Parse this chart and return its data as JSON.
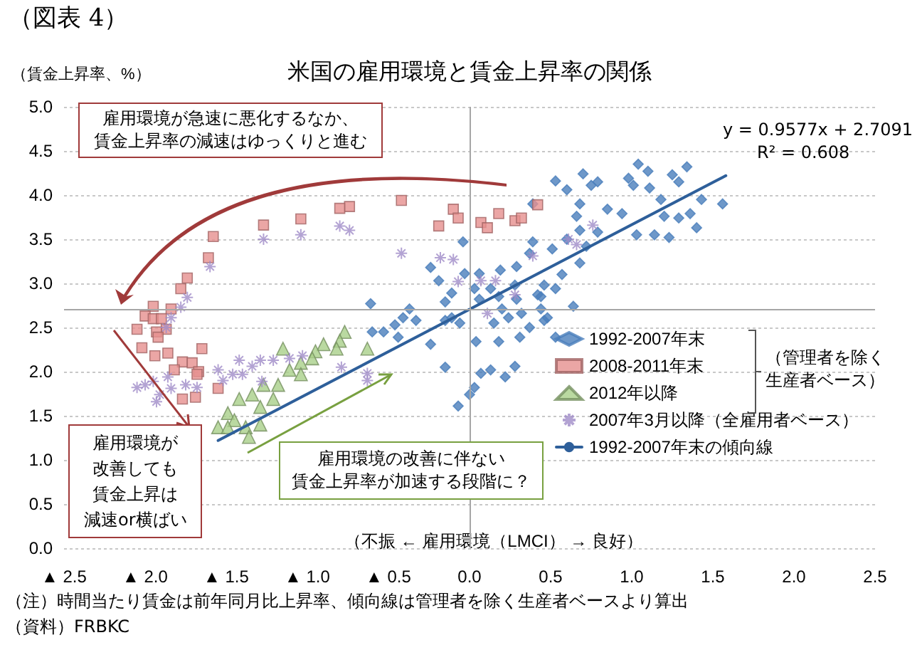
{
  "chart_data": {
    "type": "scatter",
    "title": "米国の雇用環境と賃金上昇率の関係",
    "xlabel": "（不振 ← 雇用環境（LMCI） → 良好）",
    "ylabel": "（賃金上昇率、%）",
    "xlim": [
      -2.5,
      2.5
    ],
    "xticks": [
      {
        "value": -2.5,
        "label": "▲ 2.5"
      },
      {
        "value": -2,
        "label": "▲ 2.0"
      },
      {
        "value": -1.5,
        "label": "▲ 1.5"
      },
      {
        "value": -1,
        "label": "▲ 1.0"
      },
      {
        "value": -0.5,
        "label": "▲ 0.5"
      },
      {
        "value": 0,
        "label": "0.0"
      },
      {
        "value": 0.5,
        "label": "0.5"
      },
      {
        "value": 1,
        "label": "1.0"
      },
      {
        "value": 1.5,
        "label": "1.5"
      },
      {
        "value": 2,
        "label": "2.0"
      },
      {
        "value": 2.5,
        "label": "2.5"
      }
    ],
    "ylim": [
      0,
      5
    ],
    "yticks": [
      {
        "value": 0,
        "label": "0.0"
      },
      {
        "value": 0.5,
        "label": "0.5"
      },
      {
        "value": 1,
        "label": "1.0"
      },
      {
        "value": 1.5,
        "label": "1.5"
      },
      {
        "value": 2,
        "label": "2.0"
      },
      {
        "value": 2.5,
        "label": "2.5"
      },
      {
        "value": 3,
        "label": "3.0"
      },
      {
        "value": 3.5,
        "label": "3.5"
      },
      {
        "value": 4,
        "label": "4.0"
      },
      {
        "value": 4.5,
        "label": "4.5"
      },
      {
        "value": 5,
        "label": "5.0"
      }
    ],
    "grid": "y",
    "legend": "bottom right",
    "series": [
      {
        "name": "1992-2007年末",
        "color": "#4a7ebb",
        "marker": "diamond",
        "x": [
          -0.04,
          -0.24,
          -0.19,
          -0.11,
          -0.15,
          -0.03,
          -0.61,
          -0.37,
          -0.41,
          -0.33,
          -0.46,
          -0.53,
          -0.6,
          -0.15,
          -0.06,
          -0.44,
          -0.24,
          -0.15,
          0,
          -0.07,
          0.03,
          0.04,
          -0.11,
          0.53,
          0.6,
          0.7,
          0.75,
          0.79,
          0.98,
          1.04,
          1.1,
          1.01,
          1.11,
          1.25,
          1.34,
          1.29,
          1.18,
          1.43,
          1.56,
          1.36,
          1.4,
          1.29,
          1.2,
          1.03,
          0.94,
          1.14,
          1.23,
          0.85,
          0.68,
          0.66,
          0.68,
          0.79,
          0.72,
          0.6,
          0.39,
          0.39,
          0.51,
          0.57,
          0.37,
          0.68,
          0.64,
          0.46,
          0.53,
          0.42,
          0.29,
          0.19,
          0.06,
          0.13,
          0.28,
          0.2,
          0.06,
          0.32,
          0.44,
          0.48,
          0.37,
          0.24,
          0.53,
          0.03,
          0.18,
          0.29,
          0.44,
          0.46,
          0.15,
          0.31,
          0.18,
          0.13,
          0.28,
          0.22,
          0.07
        ],
        "values": [
          3.47,
          3.18,
          3.03,
          2.89,
          2.79,
          3.11,
          2.77,
          2.71,
          2.61,
          2.58,
          2.53,
          2.45,
          2.45,
          2.58,
          2.55,
          2.39,
          2.31,
          2.05,
          1.74,
          1.61,
          1.82,
          2.34,
          2.61,
          4.16,
          4.06,
          4.24,
          4.11,
          4.15,
          4.19,
          4.35,
          4.27,
          4.11,
          4.08,
          4.23,
          4.32,
          4.15,
          3.95,
          3.95,
          3.9,
          3.79,
          3.63,
          3.74,
          3.76,
          3.55,
          3.79,
          3.55,
          3.52,
          3.84,
          3.9,
          3.76,
          3.6,
          3.58,
          3.42,
          3.5,
          3.9,
          3.47,
          3.39,
          3.1,
          3.34,
          3.23,
          2.74,
          2.98,
          2.94,
          2.87,
          3.19,
          3.15,
          3.11,
          2.94,
          2.98,
          2.71,
          2.82,
          2.66,
          2.71,
          2.61,
          2.5,
          2.61,
          2.39,
          2.94,
          2.85,
          2.82,
          2.85,
          2.58,
          2.55,
          2.39,
          2.34,
          2.02,
          2.06,
          1.94,
          1.98
        ]
      },
      {
        "name": "2008-2011年末",
        "color": "#e6908f",
        "marker": "square",
        "x": [
          -0.42,
          -0.1,
          -0.07,
          -0.19,
          -0.74,
          -0.8,
          -1.04,
          -1.27,
          -1.58,
          -1.61,
          -1.74,
          -1.78,
          -1.84,
          -1.95,
          -2,
          -1.95,
          -1.9,
          -1.87,
          -1.93,
          -2.05,
          -1.92,
          0.07,
          0.11,
          0.18,
          0.28,
          0.32,
          0.42,
          -2.02,
          -1.94,
          -1.86,
          -1.65,
          -1.77,
          -1.71,
          -1.82,
          -1.67,
          -1.68,
          -1.55,
          -1.77,
          -1.69
        ],
        "values": [
          3.94,
          3.84,
          3.74,
          3.65,
          3.87,
          3.85,
          3.73,
          3.66,
          3.53,
          3.29,
          3.06,
          2.94,
          2.71,
          2.74,
          2.63,
          2.6,
          2.6,
          2.48,
          2.45,
          2.48,
          2.39,
          3.69,
          3.63,
          3.79,
          3.71,
          3.74,
          3.89,
          2.27,
          2.18,
          2.21,
          2.26,
          2.11,
          2.1,
          2.02,
          2,
          1.97,
          1.81,
          1.69,
          1.71
        ]
      },
      {
        "name": "2012年以降",
        "color": "#a9cf8a",
        "marker": "triangle",
        "x": [
          -0.77,
          -0.8,
          -0.82,
          -0.63,
          -0.9,
          -0.95,
          -0.97,
          -1.15,
          -1.04,
          -1.11,
          -1.04,
          -1.18,
          -1.27,
          -1.21,
          -1.34,
          -1.42,
          -1.29,
          -1.49,
          -1.45,
          -1.55,
          -1.49,
          -1.38,
          -1.29,
          -1.36
        ],
        "values": [
          2.45,
          2.35,
          2.26,
          2.26,
          2.31,
          2.23,
          2.15,
          2.26,
          2.1,
          2.02,
          1.97,
          1.85,
          1.85,
          1.69,
          1.74,
          1.69,
          1.6,
          1.53,
          1.45,
          1.37,
          1.37,
          1.37,
          1.4,
          1.26
        ]
      },
      {
        "name": "2007年3月以降（全雇用者ベース）",
        "color": "#a08cc8",
        "marker": "cross",
        "x": [
          -0.8,
          -0.74,
          -1.04,
          -1.27,
          -1.6,
          -1.74,
          -1.78,
          -1.84,
          -1.87,
          -0.42,
          -0.18,
          -0.1,
          -0.07,
          0.61,
          0.76,
          0.66,
          0.39,
          0.16,
          0.07,
          0.28,
          0.11,
          -1.55,
          -1.42,
          -1.34,
          -1.29,
          -1.21,
          -1.11,
          -1.03,
          -1.4,
          -1.46,
          -1.52,
          -2.05,
          -2,
          -1.95,
          -1.91,
          -1.93,
          -1.86,
          -1.84,
          -1.75,
          -1.68,
          -1.28,
          -0.63,
          -0.63,
          -0.79
        ],
        "values": [
          3.65,
          3.6,
          3.55,
          3.5,
          3.19,
          2.84,
          2.73,
          2.61,
          2.5,
          3.34,
          3.29,
          3.27,
          3.02,
          3.5,
          3.66,
          3.44,
          3.31,
          3.03,
          3.03,
          2.87,
          2.66,
          2.02,
          2.13,
          2.06,
          2.13,
          2.13,
          2.15,
          2.18,
          1.97,
          1.97,
          1.9,
          1.82,
          1.85,
          1.89,
          1.74,
          1.66,
          1.94,
          1.81,
          1.85,
          1.82,
          1.89,
          1.98,
          1.9,
          2.05
        ]
      },
      {
        "name": "1992-2007年末の傾向線",
        "type": "line",
        "color": "#2e5f9a",
        "marker": "none",
        "line_style": "solid",
        "x": [
          -1.55,
          1.58
        ],
        "values": [
          1.22,
          4.22
        ]
      }
    ],
    "ref_lines": [
      {
        "axis": "x",
        "value": 0,
        "color": "#a6a6a6"
      },
      {
        "axis": "y",
        "value": 2.7,
        "color": "#a6a6a6"
      }
    ],
    "annotations": [
      "（図表 4）",
      "雇用環境が急速に悪化するなか、賃金上昇率の減速はゆっくりと進む",
      "雇用環境が改善しても賃金上昇は減速or横ばい",
      "雇用環境の改善に伴ない賃金上昇率が加速する段階に？",
      "y = 0.9577x + 2.7091",
      "R² = 0.608",
      "（管理者を除く生産者ベース）",
      "（注）時間当たり賃金は前年同月比上昇率、傾向線は管理者を除く生産者ベースより算出",
      "（資料）FRBKC"
    ]
  }
}
